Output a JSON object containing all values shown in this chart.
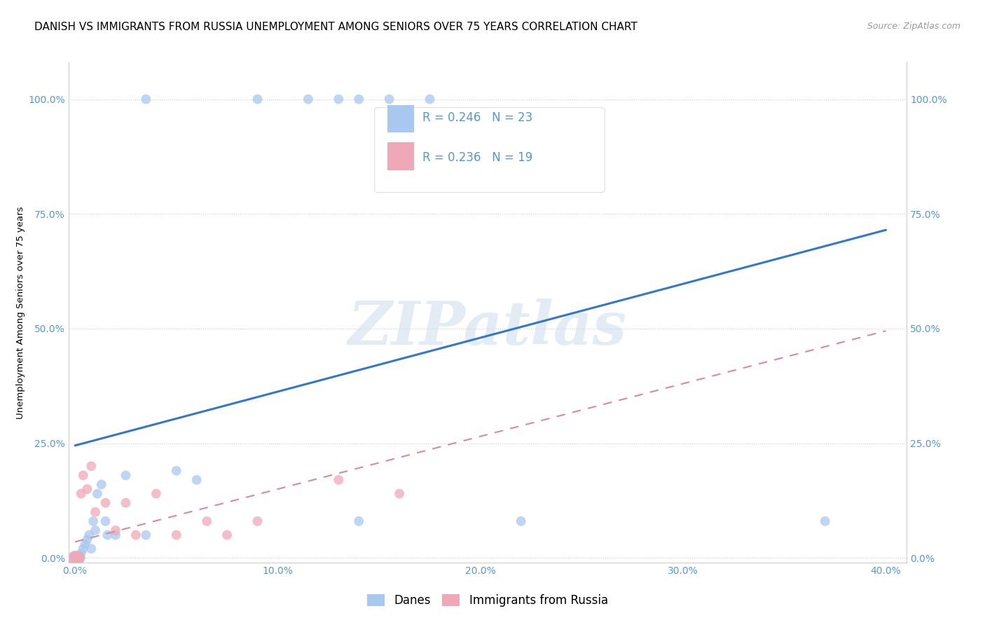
{
  "title": "DANISH VS IMMIGRANTS FROM RUSSIA UNEMPLOYMENT AMONG SENIORS OVER 75 YEARS CORRELATION CHART",
  "source": "Source: ZipAtlas.com",
  "ylabel": "Unemployment Among Seniors over 75 years",
  "xlabel_ticks": [
    "0.0%",
    "10.0%",
    "20.0%",
    "30.0%",
    "40.0%"
  ],
  "ylabel_ticks_left": [
    "0.0%",
    "25.0%",
    "50.0%",
    "75.0%",
    "100.0%"
  ],
  "ylabel_ticks_right": [
    "0.0%",
    "25.0%",
    "50.0%",
    "75.0%",
    "100.0%"
  ],
  "xlim": [
    -0.003,
    0.41
  ],
  "ylim": [
    -0.01,
    1.08
  ],
  "ytick_vals": [
    0.0,
    0.25,
    0.5,
    0.75,
    1.0
  ],
  "xtick_vals": [
    0.0,
    0.1,
    0.2,
    0.3,
    0.4
  ],
  "legend_danes": "Danes",
  "legend_russia": "Immigrants from Russia",
  "R_danes": 0.246,
  "N_danes": 23,
  "R_russia": 0.236,
  "N_russia": 19,
  "danes_color": "#a8c8f0",
  "russia_color": "#f0a8b8",
  "danes_line_color": "#3377cc",
  "russia_line_color": "#dd8899",
  "danes_line_x0": 0.0,
  "danes_line_y0": 0.245,
  "danes_line_x1": 0.4,
  "danes_line_y1": 0.715,
  "russia_line_x0": 0.0,
  "russia_line_y0": 0.035,
  "russia_line_x1": 0.4,
  "russia_line_y1": 0.495,
  "danes_x": [
    0.0,
    0.001,
    0.002,
    0.003,
    0.004,
    0.005,
    0.006,
    0.007,
    0.008,
    0.009,
    0.01,
    0.011,
    0.013,
    0.015,
    0.016,
    0.02,
    0.025,
    0.035,
    0.05,
    0.06,
    0.14,
    0.22,
    0.37
  ],
  "danes_y": [
    0.0,
    0.0,
    0.0,
    0.01,
    0.02,
    0.03,
    0.04,
    0.05,
    0.02,
    0.08,
    0.06,
    0.14,
    0.16,
    0.08,
    0.05,
    0.05,
    0.18,
    0.05,
    0.19,
    0.17,
    0.08,
    0.08,
    0.08
  ],
  "danes_marker_sizes": [
    200,
    180,
    160,
    100,
    100,
    100,
    100,
    100,
    100,
    100,
    100,
    100,
    100,
    100,
    100,
    100,
    100,
    100,
    100,
    100,
    100,
    100,
    100
  ],
  "russia_x": [
    0.0,
    0.001,
    0.002,
    0.003,
    0.004,
    0.006,
    0.008,
    0.01,
    0.015,
    0.02,
    0.025,
    0.03,
    0.04,
    0.05,
    0.065,
    0.075,
    0.09,
    0.13,
    0.16
  ],
  "russia_y": [
    0.0,
    0.0,
    0.0,
    0.14,
    0.18,
    0.15,
    0.2,
    0.1,
    0.12,
    0.06,
    0.12,
    0.05,
    0.14,
    0.05,
    0.08,
    0.05,
    0.08,
    0.17,
    0.14
  ],
  "russia_marker_sizes": [
    220,
    200,
    140,
    100,
    100,
    100,
    100,
    100,
    100,
    100,
    100,
    100,
    100,
    100,
    100,
    100,
    100,
    100,
    100
  ],
  "top_danes_x": [
    0.035,
    0.09,
    0.115,
    0.13,
    0.14,
    0.155,
    0.175
  ],
  "top_danes_y": [
    1.0,
    1.0,
    1.0,
    1.0,
    1.0,
    1.0,
    1.0
  ],
  "top_danes_sizes": [
    100,
    100,
    100,
    100,
    100,
    100,
    100
  ],
  "watermark_text": "ZIPatlas",
  "background_color": "#ffffff",
  "grid_color": "#cccccc",
  "tick_color": "#5599cc",
  "title_fontsize": 11,
  "axis_fontsize": 10,
  "legend_fontsize": 12,
  "source_fontsize": 9
}
